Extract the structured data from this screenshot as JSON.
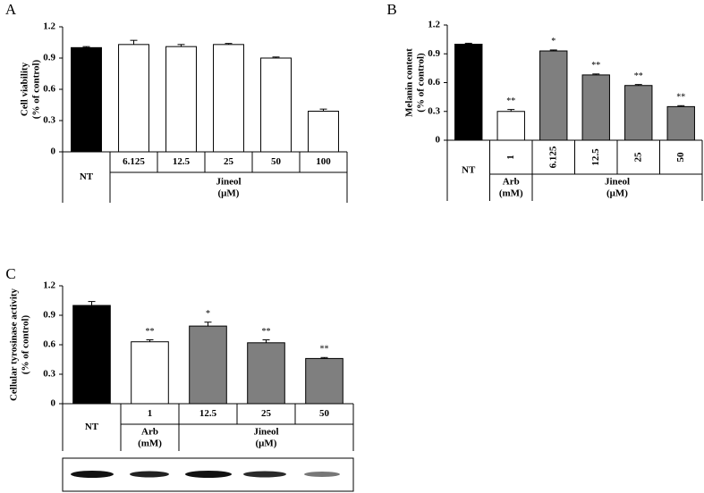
{
  "chart_data": [
    {
      "type": "bar",
      "panel_label": "A",
      "y_label": [
        "Cell viability",
        "(% of control)"
      ],
      "ylim": [
        0,
        1.2
      ],
      "yticks": [
        0,
        0.3,
        0.6,
        0.9,
        1.2
      ],
      "groups": [
        {
          "label": "NT",
          "categories": [
            null
          ],
          "color": "#000000"
        },
        {
          "label": "Jineol",
          "unit": "(μM)",
          "categories": [
            "6.125",
            "12.5",
            "25",
            "50",
            "100"
          ],
          "color": "#ffffff"
        }
      ],
      "values": [
        1.0,
        1.03,
        1.01,
        1.03,
        0.9,
        0.39
      ],
      "errors": [
        0.01,
        0.04,
        0.02,
        0.01,
        0.01,
        0.02
      ]
    },
    {
      "type": "bar",
      "panel_label": "B",
      "y_label": [
        "Melanin content",
        "(% of control)"
      ],
      "ylim": [
        0,
        1.2
      ],
      "yticks": [
        0,
        0.3,
        0.6,
        0.9,
        1.2
      ],
      "groups": [
        {
          "label": "NT",
          "categories": [
            null
          ],
          "color": "#000000"
        },
        {
          "label": "Arb",
          "unit": "(mM)",
          "categories": [
            "1"
          ],
          "color": "#ffffff"
        },
        {
          "label": "Jineol",
          "unit": "(μM)",
          "categories": [
            "6.125",
            "12.5",
            "25",
            "50"
          ],
          "color": "#7f7f7f"
        }
      ],
      "values": [
        1.0,
        0.3,
        0.93,
        0.68,
        0.57,
        0.35
      ],
      "errors": [
        0.01,
        0.02,
        0.01,
        0.01,
        0.01,
        0.01
      ],
      "annotations": [
        null,
        "**",
        "*",
        "**",
        "**",
        "**"
      ]
    },
    {
      "type": "bar",
      "panel_label": "C",
      "y_label": [
        "Cellular tyrosinase activity",
        "(% of control)"
      ],
      "ylim": [
        0,
        1.2
      ],
      "yticks": [
        0,
        0.3,
        0.6,
        0.9,
        1.2
      ],
      "groups": [
        {
          "label": "NT",
          "categories": [
            null
          ],
          "color": "#000000"
        },
        {
          "label": "Arb",
          "unit": "(mM)",
          "categories": [
            "1"
          ],
          "color": "#ffffff"
        },
        {
          "label": "Jineol",
          "unit": "(μM)",
          "categories": [
            "12.5",
            "25",
            "50"
          ],
          "color": "#7f7f7f"
        }
      ],
      "values": [
        1.0,
        0.63,
        0.79,
        0.62,
        0.46
      ],
      "errors": [
        0.04,
        0.02,
        0.04,
        0.03,
        0.01
      ],
      "annotations": [
        null,
        "**",
        "*",
        "**",
        "**"
      ]
    }
  ]
}
